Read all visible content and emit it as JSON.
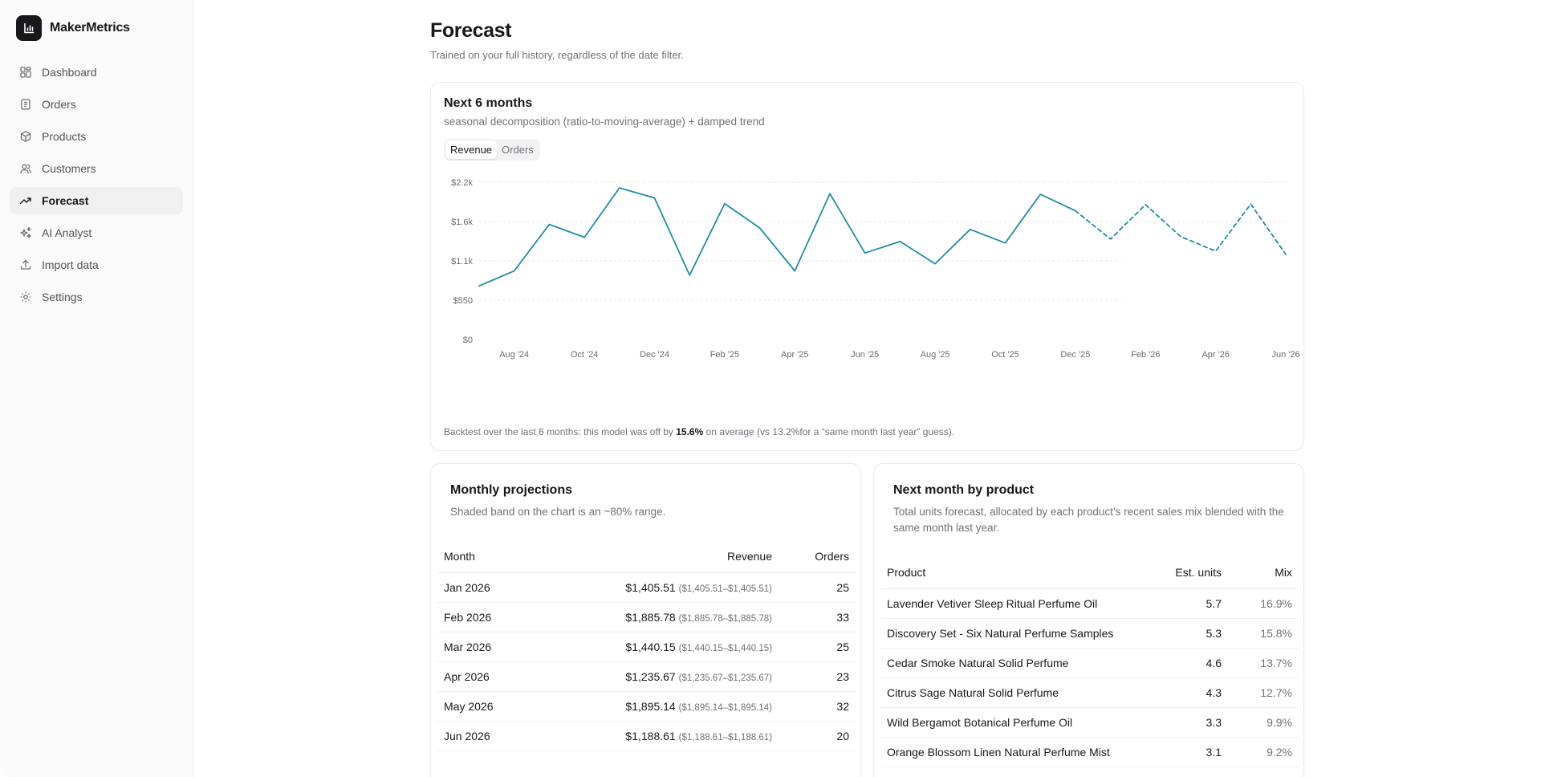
{
  "app": {
    "name": "MakerMetrics"
  },
  "sidebar": {
    "items": [
      {
        "label": "Dashboard",
        "icon": "dashboard-icon"
      },
      {
        "label": "Orders",
        "icon": "receipt-icon"
      },
      {
        "label": "Products",
        "icon": "package-icon"
      },
      {
        "label": "Customers",
        "icon": "users-icon"
      },
      {
        "label": "Forecast",
        "icon": "trending-up-icon",
        "active": true
      },
      {
        "label": "AI Analyst",
        "icon": "sparkles-icon"
      },
      {
        "label": "Import data",
        "icon": "upload-icon"
      },
      {
        "label": "Settings",
        "icon": "gear-icon"
      }
    ]
  },
  "page": {
    "title": "Forecast",
    "subtitle": "Trained on your full history, regardless of the date filter."
  },
  "forecast_card": {
    "title": "Next 6 months",
    "subtitle": "seasonal decomposition (ratio-to-moving-average) + damped trend",
    "toggle": {
      "revenue": "Revenue",
      "orders": "Orders",
      "active": "Revenue"
    },
    "backtest_prefix": "Backtest over the last 6 months: this model was off by ",
    "backtest_value": "15.6%",
    "backtest_suffix": " on average (vs 13.2%for a “same month last year” guess)."
  },
  "chart_data": {
    "type": "line",
    "accent_color": "#1f8ea3",
    "y_tick_labels": [
      "$0",
      "$550",
      "$1.1k",
      "$1.6k",
      "$2.2k"
    ],
    "y_tick_values": [
      0,
      550,
      1100,
      1650,
      2200
    ],
    "ylim": [
      0,
      2200
    ],
    "x_tick_labels": [
      "Aug '24",
      "Oct '24",
      "Dec '24",
      "Feb '25",
      "Apr '25",
      "Jun '25",
      "Aug '25",
      "Oct '25",
      "Dec '25",
      "Feb '26",
      "Apr '26",
      "Jun '26"
    ],
    "grid": true,
    "series": [
      {
        "style": "solid",
        "x": [
          "2024-07",
          "2024-08",
          "2024-09",
          "2024-10",
          "2024-11",
          "2024-12",
          "2025-01",
          "2025-02",
          "2025-03",
          "2025-04",
          "2025-05",
          "2025-06",
          "2025-07",
          "2025-08",
          "2025-09",
          "2025-10",
          "2025-11",
          "2025-12"
        ],
        "values": [
          750,
          960,
          1610,
          1430,
          2120,
          1980,
          900,
          1900,
          1560,
          960,
          2040,
          1210,
          1370,
          1060,
          1540,
          1350,
          2030,
          1800
        ]
      },
      {
        "style": "dashed",
        "x": [
          "2025-12",
          "2026-01",
          "2026-02",
          "2026-03",
          "2026-04",
          "2026-05",
          "2026-06"
        ],
        "values": [
          1800,
          1405.51,
          1885.78,
          1440.15,
          1235.67,
          1895.14,
          1188.61
        ]
      }
    ]
  },
  "projections": {
    "title": "Monthly projections",
    "subtitle": "Shaded band on the chart is an ~80% range.",
    "columns": [
      "Month",
      "Revenue",
      "Orders"
    ],
    "rows": [
      {
        "month": "Jan 2026",
        "revenue": "$1,405.51",
        "range": "($1,405.51–$1,405.51)",
        "orders": "25"
      },
      {
        "month": "Feb 2026",
        "revenue": "$1,885.78",
        "range": "($1,885.78–$1,885.78)",
        "orders": "33"
      },
      {
        "month": "Mar 2026",
        "revenue": "$1,440.15",
        "range": "($1,440.15–$1,440.15)",
        "orders": "25"
      },
      {
        "month": "Apr 2026",
        "revenue": "$1,235.67",
        "range": "($1,235.67–$1,235.67)",
        "orders": "23"
      },
      {
        "month": "May 2026",
        "revenue": "$1,895.14",
        "range": "($1,895.14–$1,895.14)",
        "orders": "32"
      },
      {
        "month": "Jun 2026",
        "revenue": "$1,188.61",
        "range": "($1,188.61–$1,188.61)",
        "orders": "20"
      }
    ]
  },
  "products": {
    "title": "Next month by product",
    "subtitle": "Total units forecast, allocated by each product’s recent sales mix blended with the same month last year.",
    "columns": [
      "Product",
      "Est. units",
      "Mix"
    ],
    "rows": [
      {
        "product": "Lavender Vetiver Sleep Ritual Perfume Oil",
        "units": "5.7",
        "mix": "16.9%"
      },
      {
        "product": "Discovery Set - Six Natural Perfume Samples",
        "units": "5.3",
        "mix": "15.8%"
      },
      {
        "product": "Cedar Smoke Natural Solid Perfume",
        "units": "4.6",
        "mix": "13.7%"
      },
      {
        "product": "Citrus Sage Natural Solid Perfume",
        "units": "4.3",
        "mix": "12.7%"
      },
      {
        "product": "Wild Bergamot Botanical Perfume Oil",
        "units": "3.3",
        "mix": "9.9%"
      },
      {
        "product": "Orange Blossom Linen Natural Perfume Mist",
        "units": "3.1",
        "mix": "9.2%"
      }
    ]
  }
}
